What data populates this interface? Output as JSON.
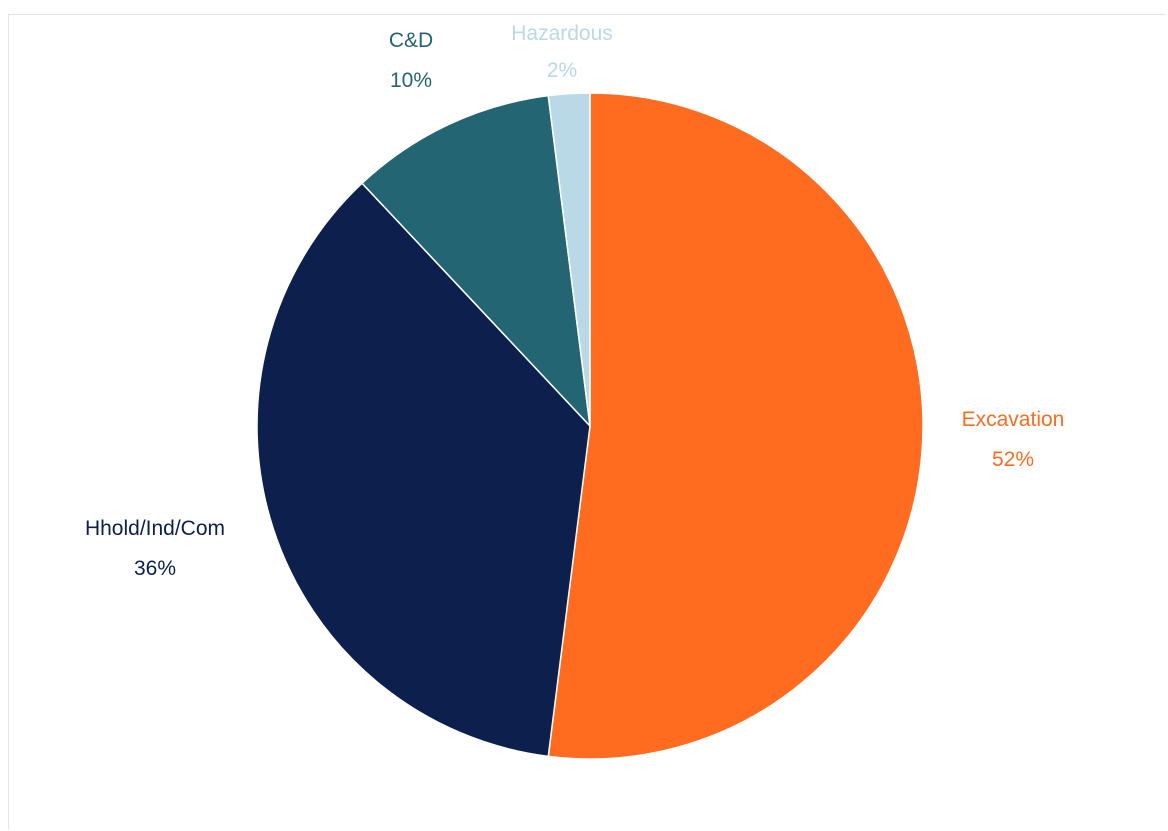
{
  "chart_data": {
    "type": "pie",
    "title": "",
    "slices": [
      {
        "label": "Excavation",
        "value": 52,
        "percent_label": "52%",
        "color": "#FF6B1F"
      },
      {
        "label": "Hhold/Ind/Com",
        "value": 36,
        "percent_label": "36%",
        "color": "#0C1F4D"
      },
      {
        "label": "C&D",
        "value": 10,
        "percent_label": "10%",
        "color": "#236572"
      },
      {
        "label": "Hazardous",
        "value": 2,
        "percent_label": "2%",
        "color": "#B9D9E6"
      }
    ],
    "start_angle_degrees": 0,
    "direction": "clockwise",
    "legend": "none"
  }
}
